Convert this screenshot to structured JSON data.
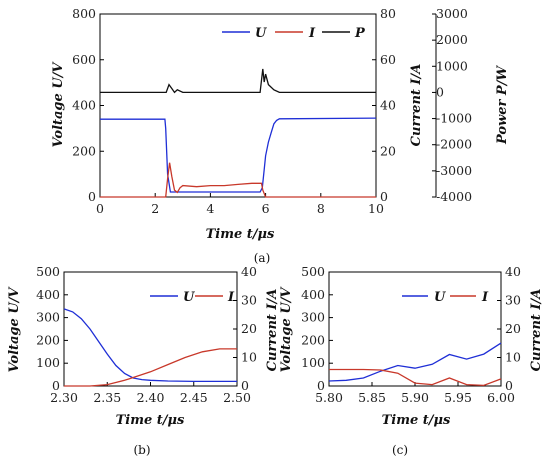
{
  "chart_data": [
    {
      "panel": "a",
      "type": "line",
      "caption": "(a)",
      "xlabel": "Time t/μs",
      "ylabel_left": "Voltage U/V",
      "ylabel_right1": "Current I/A",
      "ylabel_right2": "Power P/W",
      "xlim": [
        0,
        10
      ],
      "xticks": [
        0,
        2,
        4,
        6,
        8,
        10
      ],
      "ylim_left": [
        0,
        800
      ],
      "yticks_left": [
        0,
        200,
        400,
        600,
        800
      ],
      "ylim_right1": [
        0,
        80
      ],
      "yticks_right1": [
        0,
        20,
        40,
        60,
        80
      ],
      "ylim_right2": [
        -4000,
        3000
      ],
      "yticks_right2": [
        -4000,
        -3000,
        -2000,
        -1000,
        0,
        1000,
        2000,
        3000
      ],
      "legend": [
        "U",
        "I",
        "P"
      ],
      "series": [
        {
          "name": "U",
          "axis": "left",
          "color": "#1f2fd6",
          "x": [
            0,
            2.35,
            2.38,
            2.45,
            2.55,
            5.8,
            5.88,
            5.95,
            6.0,
            6.1,
            6.2,
            6.3,
            6.4,
            6.5,
            10
          ],
          "y": [
            340,
            340,
            300,
            100,
            22,
            22,
            40,
            120,
            180,
            240,
            280,
            320,
            335,
            342,
            345
          ]
        },
        {
          "name": "I",
          "axis": "right1",
          "color": "#c8382a",
          "x": [
            0,
            2.38,
            2.45,
            2.52,
            2.6,
            2.7,
            2.8,
            2.9,
            3.0,
            3.5,
            4.0,
            4.5,
            5.0,
            5.5,
            5.85,
            5.9,
            6.0,
            6.1,
            6.2,
            10
          ],
          "y": [
            0,
            0,
            8,
            15,
            9,
            3,
            2,
            4,
            5,
            4.5,
            5,
            5,
            5.5,
            6,
            6,
            3,
            0,
            0,
            0,
            0
          ]
        },
        {
          "name": "P",
          "axis": "right2",
          "color": "#111111",
          "x": [
            0,
            2.4,
            2.5,
            2.6,
            2.7,
            2.8,
            3,
            5.8,
            5.9,
            5.95,
            6.0,
            6.1,
            6.3,
            6.5,
            10
          ],
          "y": [
            0,
            0,
            300,
            150,
            0,
            100,
            0,
            0,
            900,
            400,
            700,
            300,
            100,
            0,
            0
          ]
        }
      ]
    },
    {
      "panel": "b",
      "type": "line",
      "caption": "(b)",
      "xlabel": "Time t/μs",
      "ylabel_left": "Voltage U/V",
      "ylabel_right": "Current I/A",
      "xlim": [
        2.3,
        2.5
      ],
      "xticks": [
        "2.30",
        "2.35",
        "2.40",
        "2.45",
        "2.50"
      ],
      "ylim_left": [
        0,
        500
      ],
      "yticks_left": [
        0,
        100,
        200,
        300,
        400,
        500
      ],
      "ylim_right": [
        0,
        40
      ],
      "yticks_right": [
        0,
        10,
        20,
        30,
        40
      ],
      "legend": [
        "U",
        "I"
      ],
      "series": [
        {
          "name": "U",
          "axis": "left",
          "color": "#1f2fd6",
          "x": [
            2.3,
            2.31,
            2.32,
            2.33,
            2.34,
            2.35,
            2.36,
            2.37,
            2.38,
            2.39,
            2.4,
            2.42,
            2.45,
            2.5
          ],
          "y": [
            338,
            325,
            295,
            250,
            195,
            140,
            90,
            55,
            35,
            28,
            25,
            22,
            20,
            20
          ]
        },
        {
          "name": "I",
          "axis": "right",
          "color": "#c8382a",
          "x": [
            2.3,
            2.33,
            2.35,
            2.37,
            2.4,
            2.42,
            2.44,
            2.46,
            2.48,
            2.5
          ],
          "y": [
            0,
            0,
            0.5,
            2,
            5,
            7.5,
            10,
            12,
            13,
            13
          ]
        }
      ]
    },
    {
      "panel": "c",
      "type": "line",
      "caption": "(c)",
      "xlabel": "Time t/μs",
      "ylabel_left": "Voltage U/V",
      "ylabel_right": "Current I/A",
      "xlim": [
        5.8,
        6.0
      ],
      "xticks": [
        "5.80",
        "5.85",
        "5.90",
        "5.95",
        "6.00"
      ],
      "ylim_left": [
        0,
        500
      ],
      "yticks_left": [
        0,
        100,
        200,
        300,
        400,
        500
      ],
      "ylim_right": [
        0,
        40
      ],
      "yticks_right": [
        0,
        10,
        20,
        30,
        40
      ],
      "legend": [
        "U",
        "I"
      ],
      "series": [
        {
          "name": "U",
          "axis": "left",
          "color": "#1f2fd6",
          "x": [
            5.8,
            5.82,
            5.84,
            5.86,
            5.88,
            5.9,
            5.92,
            5.94,
            5.96,
            5.98,
            6.0
          ],
          "y": [
            22,
            25,
            35,
            65,
            90,
            78,
            95,
            138,
            118,
            140,
            188
          ]
        },
        {
          "name": "I",
          "axis": "right",
          "color": "#c8382a",
          "x": [
            5.8,
            5.82,
            5.84,
            5.86,
            5.88,
            5.9,
            5.92,
            5.94,
            5.96,
            5.98,
            6.0
          ],
          "y": [
            5.8,
            5.8,
            5.8,
            5.6,
            4.5,
            1.0,
            0.5,
            2.8,
            0.5,
            0.2,
            2.5
          ]
        }
      ]
    }
  ]
}
